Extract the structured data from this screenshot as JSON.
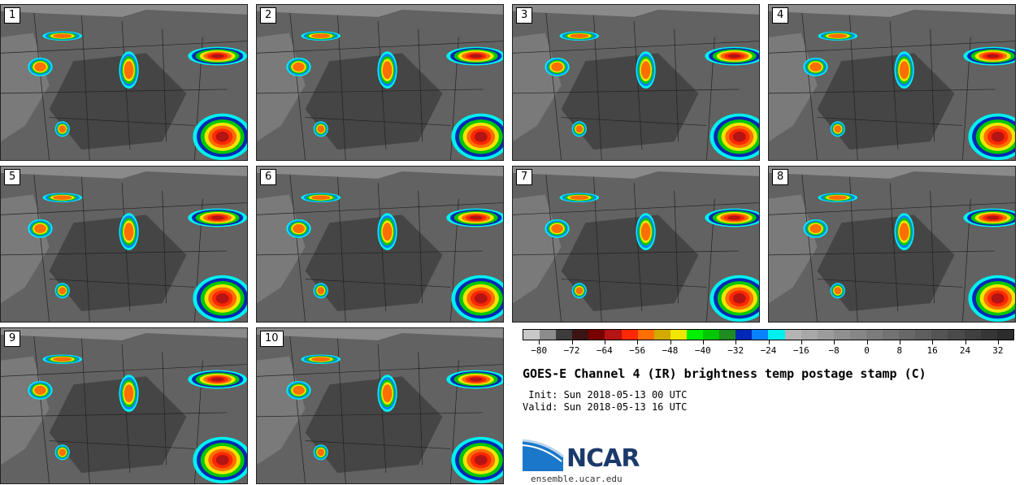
{
  "panels": [
    "1",
    "2",
    "3",
    "4",
    "5",
    "6",
    "7",
    "8",
    "9",
    "10"
  ],
  "colorbar": {
    "colors": [
      "#c8c8c8",
      "#8c8c8c",
      "#3c3c3c",
      "#3c1414",
      "#780000",
      "#b41414",
      "#ff2800",
      "#ff6e00",
      "#d2aa00",
      "#f0e600",
      "#00f000",
      "#00c800",
      "#1e8c1e",
      "#0028b4",
      "#0a82ff",
      "#00f0f0",
      "#b4b4b4",
      "#a8a8a8",
      "#9c9c9c",
      "#909090",
      "#868686",
      "#7c7c7c",
      "#727272",
      "#686868",
      "#5e5e5e",
      "#545454",
      "#4a4a4a",
      "#404040",
      "#363636",
      "#2c2c2c"
    ],
    "tick_labels": [
      "−80",
      "−72",
      "−64",
      "−56",
      "−48",
      "−40",
      "−32",
      "−24",
      "−16",
      "−8",
      "0",
      "8",
      "16",
      "24",
      "32"
    ],
    "range": [
      -80,
      40
    ]
  },
  "title": "GOES-E Channel 4 (IR) brightness temp postage stamp (C)",
  "init": " Init: Sun 2018-05-13 00 UTC",
  "valid": "Valid: Sun 2018-05-13 16 UTC",
  "logo_text": "NCAR",
  "url": "ensemble.ucar.edu"
}
